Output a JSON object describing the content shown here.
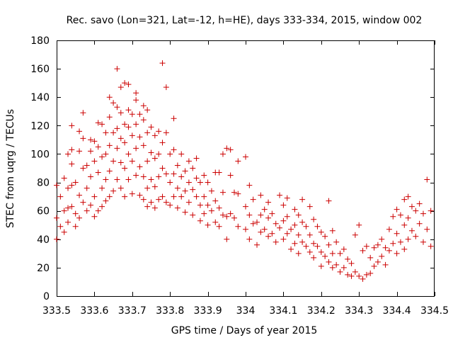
{
  "chart_data": {
    "type": "scatter",
    "title": "Rec. savo (Lon=321, Lat=-12, h=HE), days 333-334, 2015, window 002",
    "xlabel": "GPS time / Days of year 2015",
    "ylabel": "STEC from uqrg / TECUs",
    "xlim": [
      333.5,
      334.5
    ],
    "ylim": [
      0,
      180
    ],
    "xticks": [
      333.5,
      333.6,
      333.7,
      333.8,
      333.9,
      334,
      334.1,
      334.2,
      334.3,
      334.4,
      334.5
    ],
    "xtick_labels": [
      "333.5",
      "333.6",
      "333.7",
      "333.8",
      "333.9",
      "334",
      "334.1",
      "334.2",
      "334.3",
      "334.4",
      "334.5"
    ],
    "yticks": [
      0,
      20,
      40,
      60,
      80,
      100,
      120,
      140,
      160,
      180
    ],
    "ytick_labels": [
      "0",
      "20",
      "40",
      "60",
      "80",
      "100",
      "120",
      "140",
      "160",
      "180"
    ],
    "marker": "+",
    "color": "#cc0000",
    "series": [
      {
        "name": "STEC",
        "points": [
          [
            333.5,
            55
          ],
          [
            333.5,
            78
          ],
          [
            333.5,
            40
          ],
          [
            333.51,
            49
          ],
          [
            333.51,
            70
          ],
          [
            333.52,
            83
          ],
          [
            333.52,
            60
          ],
          [
            333.52,
            45
          ],
          [
            333.53,
            76
          ],
          [
            333.53,
            100
          ],
          [
            333.53,
            62
          ],
          [
            333.53,
            52
          ],
          [
            333.54,
            120
          ],
          [
            333.54,
            103
          ],
          [
            333.54,
            93
          ],
          [
            333.54,
            78
          ],
          [
            333.54,
            63
          ],
          [
            333.55,
            49
          ],
          [
            333.55,
            80
          ],
          [
            333.55,
            58
          ],
          [
            333.56,
            116
          ],
          [
            333.56,
            102
          ],
          [
            333.56,
            71
          ],
          [
            333.56,
            55
          ],
          [
            333.57,
            129
          ],
          [
            333.57,
            111
          ],
          [
            333.57,
            90
          ],
          [
            333.57,
            66
          ],
          [
            333.58,
            92
          ],
          [
            333.58,
            76
          ],
          [
            333.58,
            60
          ],
          [
            333.59,
            110
          ],
          [
            333.59,
            102
          ],
          [
            333.59,
            84
          ],
          [
            333.59,
            64
          ],
          [
            333.6,
            109
          ],
          [
            333.6,
            95
          ],
          [
            333.6,
            70
          ],
          [
            333.6,
            56
          ],
          [
            333.61,
            122
          ],
          [
            333.61,
            105
          ],
          [
            333.61,
            87
          ],
          [
            333.61,
            60
          ],
          [
            333.62,
            121
          ],
          [
            333.62,
            98
          ],
          [
            333.62,
            76
          ],
          [
            333.62,
            63
          ],
          [
            333.63,
            115
          ],
          [
            333.63,
            100
          ],
          [
            333.63,
            82
          ],
          [
            333.63,
            67
          ],
          [
            333.64,
            140
          ],
          [
            333.64,
            126
          ],
          [
            333.64,
            106
          ],
          [
            333.64,
            88
          ],
          [
            333.64,
            70
          ],
          [
            333.65,
            136
          ],
          [
            333.65,
            115
          ],
          [
            333.65,
            95
          ],
          [
            333.65,
            74
          ],
          [
            333.66,
            160
          ],
          [
            333.66,
            133
          ],
          [
            333.66,
            118
          ],
          [
            333.66,
            104
          ],
          [
            333.66,
            82
          ],
          [
            333.67,
            147
          ],
          [
            333.67,
            129
          ],
          [
            333.67,
            111
          ],
          [
            333.67,
            94
          ],
          [
            333.67,
            76
          ],
          [
            333.68,
            150
          ],
          [
            333.68,
            121
          ],
          [
            333.68,
            108
          ],
          [
            333.68,
            90
          ],
          [
            333.68,
            70
          ],
          [
            333.69,
            149
          ],
          [
            333.69,
            131
          ],
          [
            333.69,
            119
          ],
          [
            333.69,
            100
          ],
          [
            333.69,
            82
          ],
          [
            333.7,
            128
          ],
          [
            333.7,
            113
          ],
          [
            333.7,
            95
          ],
          [
            333.7,
            72
          ],
          [
            333.71,
            143
          ],
          [
            333.71,
            138
          ],
          [
            333.71,
            121
          ],
          [
            333.71,
            104
          ],
          [
            333.71,
            85
          ],
          [
            333.72,
            128
          ],
          [
            333.72,
            112
          ],
          [
            333.72,
            91
          ],
          [
            333.72,
            71
          ],
          [
            333.73,
            134
          ],
          [
            333.73,
            124
          ],
          [
            333.73,
            106
          ],
          [
            333.73,
            84
          ],
          [
            333.73,
            68
          ],
          [
            333.74,
            131
          ],
          [
            333.74,
            115
          ],
          [
            333.74,
            95
          ],
          [
            333.74,
            76
          ],
          [
            333.74,
            63
          ],
          [
            333.75,
            119
          ],
          [
            333.75,
            101
          ],
          [
            333.75,
            82
          ],
          [
            333.75,
            66
          ],
          [
            333.76,
            113
          ],
          [
            333.76,
            97
          ],
          [
            333.76,
            77
          ],
          [
            333.76,
            62
          ],
          [
            333.77,
            116
          ],
          [
            333.77,
            100
          ],
          [
            333.77,
            84
          ],
          [
            333.77,
            68
          ],
          [
            333.78,
            164
          ],
          [
            333.78,
            108
          ],
          [
            333.78,
            90
          ],
          [
            333.78,
            70
          ],
          [
            333.79,
            147
          ],
          [
            333.79,
            115
          ],
          [
            333.79,
            86
          ],
          [
            333.79,
            66
          ],
          [
            333.8,
            100
          ],
          [
            333.8,
            80
          ],
          [
            333.8,
            64
          ],
          [
            333.81,
            125
          ],
          [
            333.81,
            103
          ],
          [
            333.81,
            86
          ],
          [
            333.81,
            70
          ],
          [
            333.82,
            92
          ],
          [
            333.82,
            76
          ],
          [
            333.82,
            62
          ],
          [
            333.83,
            100
          ],
          [
            333.83,
            84
          ],
          [
            333.83,
            70
          ],
          [
            333.84,
            88
          ],
          [
            333.84,
            74
          ],
          [
            333.84,
            59
          ],
          [
            333.85,
            95
          ],
          [
            333.85,
            80
          ],
          [
            333.85,
            66
          ],
          [
            333.86,
            90
          ],
          [
            333.86,
            75
          ],
          [
            333.86,
            57
          ],
          [
            333.87,
            97
          ],
          [
            333.87,
            83
          ],
          [
            333.87,
            70
          ],
          [
            333.88,
            80
          ],
          [
            333.88,
            64
          ],
          [
            333.88,
            53
          ],
          [
            333.89,
            85
          ],
          [
            333.89,
            70
          ],
          [
            333.89,
            58
          ],
          [
            333.9,
            80
          ],
          [
            333.9,
            64
          ],
          [
            333.9,
            50
          ],
          [
            333.91,
            74
          ],
          [
            333.91,
            60
          ],
          [
            333.92,
            87
          ],
          [
            333.92,
            67
          ],
          [
            333.92,
            52
          ],
          [
            333.93,
            87
          ],
          [
            333.93,
            62
          ],
          [
            333.93,
            49
          ],
          [
            333.94,
            100
          ],
          [
            333.94,
            73
          ],
          [
            333.94,
            57
          ],
          [
            333.95,
            104
          ],
          [
            333.95,
            56
          ],
          [
            333.95,
            40
          ],
          [
            333.96,
            103
          ],
          [
            333.96,
            85
          ],
          [
            333.96,
            58
          ],
          [
            333.97,
            73
          ],
          [
            333.97,
            55
          ],
          [
            333.98,
            95
          ],
          [
            333.98,
            72
          ],
          [
            333.98,
            49
          ],
          [
            334.0,
            98
          ],
          [
            334.0,
            63
          ],
          [
            334.0,
            47
          ],
          [
            334.01,
            78
          ],
          [
            334.01,
            57
          ],
          [
            334.01,
            40
          ],
          [
            334.02,
            68
          ],
          [
            334.02,
            51
          ],
          [
            334.03,
            52
          ],
          [
            334.03,
            36
          ],
          [
            334.04,
            71
          ],
          [
            334.04,
            57
          ],
          [
            334.04,
            45
          ],
          [
            334.05,
            61
          ],
          [
            334.05,
            47
          ],
          [
            334.06,
            66
          ],
          [
            334.06,
            55
          ],
          [
            334.06,
            42
          ],
          [
            334.07,
            58
          ],
          [
            334.07,
            44
          ],
          [
            334.08,
            51
          ],
          [
            334.08,
            38
          ],
          [
            334.09,
            71
          ],
          [
            334.09,
            48
          ],
          [
            334.1,
            64
          ],
          [
            334.1,
            53
          ],
          [
            334.1,
            40
          ],
          [
            334.11,
            69
          ],
          [
            334.11,
            56
          ],
          [
            334.11,
            44
          ],
          [
            334.12,
            47
          ],
          [
            334.12,
            33
          ],
          [
            334.13,
            61
          ],
          [
            334.13,
            50
          ],
          [
            334.13,
            37
          ],
          [
            334.14,
            57
          ],
          [
            334.14,
            43
          ],
          [
            334.14,
            30
          ],
          [
            334.15,
            68
          ],
          [
            334.15,
            52
          ],
          [
            334.15,
            38
          ],
          [
            334.16,
            49
          ],
          [
            334.16,
            35
          ],
          [
            334.17,
            63
          ],
          [
            334.17,
            43
          ],
          [
            334.17,
            31
          ],
          [
            334.18,
            54
          ],
          [
            334.18,
            37
          ],
          [
            334.18,
            27
          ],
          [
            334.19,
            49
          ],
          [
            334.19,
            35
          ],
          [
            334.2,
            45
          ],
          [
            334.2,
            31
          ],
          [
            334.2,
            21
          ],
          [
            334.21,
            42
          ],
          [
            334.21,
            28
          ],
          [
            334.22,
            67
          ],
          [
            334.22,
            36
          ],
          [
            334.22,
            24
          ],
          [
            334.23,
            46
          ],
          [
            334.23,
            30
          ],
          [
            334.23,
            20
          ],
          [
            334.24,
            38
          ],
          [
            334.24,
            22
          ],
          [
            334.25,
            30
          ],
          [
            334.25,
            17
          ],
          [
            334.26,
            33
          ],
          [
            334.26,
            20
          ],
          [
            334.27,
            26
          ],
          [
            334.27,
            15
          ],
          [
            334.28,
            23
          ],
          [
            334.28,
            14
          ],
          [
            334.29,
            43
          ],
          [
            334.29,
            17
          ],
          [
            334.3,
            50
          ],
          [
            334.3,
            14
          ],
          [
            334.31,
            32
          ],
          [
            334.31,
            12
          ],
          [
            334.32,
            35
          ],
          [
            334.32,
            15
          ],
          [
            334.33,
            27
          ],
          [
            334.33,
            16
          ],
          [
            334.34,
            34
          ],
          [
            334.34,
            21
          ],
          [
            334.35,
            36
          ],
          [
            334.35,
            24
          ],
          [
            334.36,
            40
          ],
          [
            334.36,
            28
          ],
          [
            334.37,
            34
          ],
          [
            334.37,
            22
          ],
          [
            334.38,
            47
          ],
          [
            334.38,
            32
          ],
          [
            334.39,
            56
          ],
          [
            334.39,
            37
          ],
          [
            334.4,
            61
          ],
          [
            334.4,
            44
          ],
          [
            334.4,
            30
          ],
          [
            334.41,
            57
          ],
          [
            334.41,
            38
          ],
          [
            334.42,
            68
          ],
          [
            334.42,
            50
          ],
          [
            334.42,
            33
          ],
          [
            334.43,
            70
          ],
          [
            334.43,
            55
          ],
          [
            334.43,
            40
          ],
          [
            334.44,
            63
          ],
          [
            334.44,
            46
          ],
          [
            334.45,
            60
          ],
          [
            334.45,
            42
          ],
          [
            334.46,
            65
          ],
          [
            334.46,
            51
          ],
          [
            334.47,
            58
          ],
          [
            334.47,
            38
          ],
          [
            334.48,
            82
          ],
          [
            334.48,
            47
          ],
          [
            334.49,
            60
          ],
          [
            334.49,
            35
          ]
        ]
      }
    ]
  }
}
